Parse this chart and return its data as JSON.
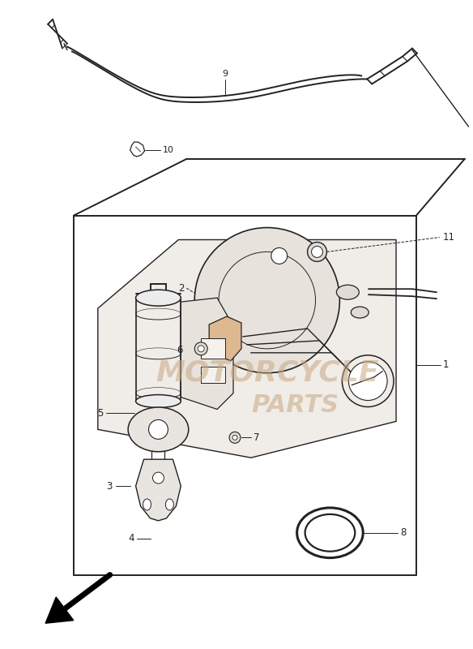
{
  "bg_color": "#ffffff",
  "line_color": "#222222",
  "watermark_color": "#c8a882",
  "watermark_text1": "MOTORCYCLE",
  "watermark_text2": "PARTS",
  "fig_width": 5.84,
  "fig_height": 8.0
}
